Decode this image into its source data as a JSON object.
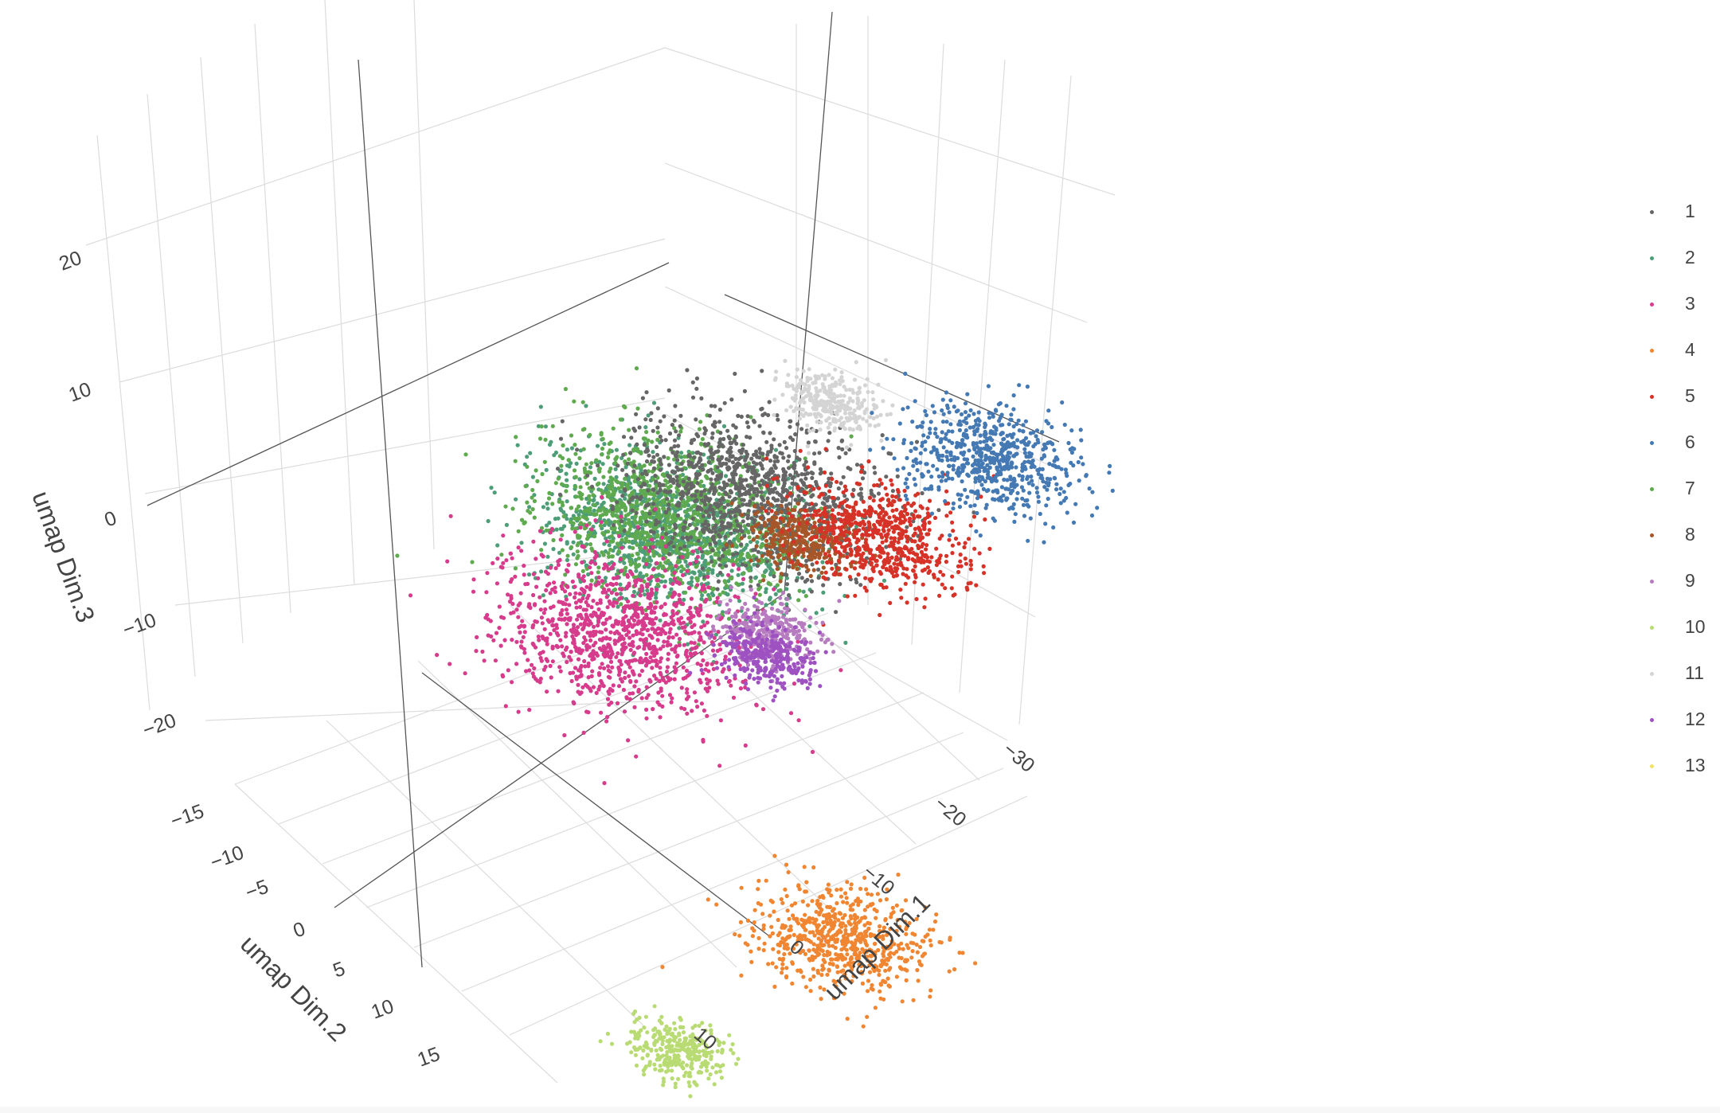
{
  "chart_data": {
    "type": "scatter",
    "title": "",
    "xlabel": "umap Dim.1",
    "ylabel": "umap Dim.2",
    "zlabel": "umap Dim.3",
    "x_ticks": [
      "−30",
      "−20",
      "−10",
      "0",
      "10"
    ],
    "y_ticks": [
      "−15",
      "−10",
      "−5",
      "0",
      "5",
      "10",
      "15"
    ],
    "z_ticks": [
      "20",
      "10",
      "0",
      "−10",
      "−20"
    ],
    "legend_position": "right",
    "grid": true,
    "series": [
      {
        "name": "1",
        "color": "#666666"
      },
      {
        "name": "2",
        "color": "#4d9e78"
      },
      {
        "name": "3",
        "color": "#d63b8c"
      },
      {
        "name": "4",
        "color": "#f08632"
      },
      {
        "name": "5",
        "color": "#d73227"
      },
      {
        "name": "6",
        "color": "#4479b3"
      },
      {
        "name": "7",
        "color": "#5faa4e"
      },
      {
        "name": "8",
        "color": "#a65628"
      },
      {
        "name": "9",
        "color": "#b77cc0"
      },
      {
        "name": "10",
        "color": "#b9db73"
      },
      {
        "name": "11",
        "color": "#d4d4d4"
      },
      {
        "name": "12",
        "color": "#9e52c2"
      },
      {
        "name": "13",
        "color": "#f2e36b"
      }
    ],
    "clusters": [
      {
        "series": "2",
        "dim1_center": 8,
        "dim2_center": -12,
        "dim3_center": -3,
        "spread": "large"
      },
      {
        "series": "7",
        "dim1_center": 6,
        "dim2_center": -10,
        "dim3_center": 0,
        "spread": "large"
      },
      {
        "series": "1",
        "dim1_center": 2,
        "dim2_center": -12,
        "dim3_center": 3,
        "spread": "large"
      },
      {
        "series": "3",
        "dim1_center": 2,
        "dim2_center": -3,
        "dim3_center": -4,
        "spread": "large"
      },
      {
        "series": "11",
        "dim1_center": -2,
        "dim2_center": -14,
        "dim3_center": 11,
        "spread": "small"
      },
      {
        "series": "8",
        "dim1_center": -6,
        "dim2_center": -8,
        "dim3_center": 5,
        "spread": "small"
      },
      {
        "series": "5",
        "dim1_center": -14,
        "dim2_center": -6,
        "dim3_center": 10,
        "spread": "medium"
      },
      {
        "series": "6",
        "dim1_center": -20,
        "dim2_center": -8,
        "dim3_center": 18,
        "spread": "medium"
      },
      {
        "series": "9",
        "dim1_center": -12,
        "dim2_center": 0,
        "dim3_center": 4,
        "spread": "small"
      },
      {
        "series": "12",
        "dim1_center": -14,
        "dim2_center": 2,
        "dim3_center": 4,
        "spread": "small"
      },
      {
        "series": "4",
        "dim1_center": -26,
        "dim2_center": 8,
        "dim3_center": -9,
        "spread": "medium"
      },
      {
        "series": "10",
        "dim1_center": -20,
        "dim2_center": 14,
        "dim3_center": -18,
        "spread": "small"
      }
    ]
  }
}
